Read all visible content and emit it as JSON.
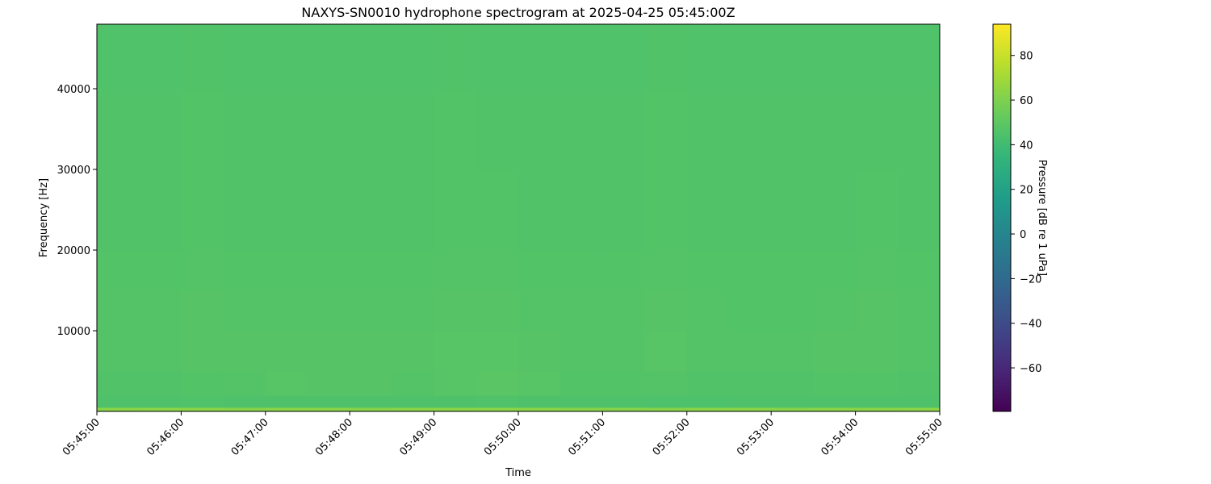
{
  "chart_data": {
    "type": "heatmap",
    "title": "NAXYS-SN0010 hydrophone spectrogram at 2025-04-25 05:45:00Z",
    "xlabel": "Time",
    "ylabel": "Frequency [Hz]",
    "colorbar_label": "Pressure [dB re 1 uPa]",
    "colormap": "viridis",
    "clim": [
      -79.5,
      94
    ],
    "colorbar_ticks": [
      -60,
      -40,
      -20,
      0,
      20,
      40,
      60,
      80
    ],
    "colorbar_tick_labels": [
      "−60",
      "−40",
      "−20",
      "0",
      "20",
      "40",
      "60",
      "80"
    ],
    "xlim": [
      "05:45:00",
      "05:55:00"
    ],
    "x_tick_labels": [
      "05:45:00",
      "05:46:00",
      "05:47:00",
      "05:48:00",
      "05:49:00",
      "05:50:00",
      "05:51:00",
      "05:52:00",
      "05:53:00",
      "05:54:00",
      "05:55:00"
    ],
    "ylim": [
      0,
      48000
    ],
    "y_ticks": [
      10000,
      20000,
      30000,
      40000
    ],
    "y_tick_labels": [
      "10000",
      "20000",
      "30000",
      "40000"
    ],
    "grid": false,
    "time_bin_seconds": 30,
    "freq_bin_edges": [
      0,
      500,
      2000,
      5000,
      10000,
      15000,
      20000,
      30000,
      40000,
      48000
    ],
    "z": [
      [
        63,
        63.5,
        63,
        62.5,
        63,
        63,
        62.5,
        63,
        63,
        63.5,
        63,
        62.5,
        62,
        62.5,
        63,
        63,
        62.5,
        63,
        63,
        63.5
      ],
      [
        45,
        45,
        45.5,
        45,
        45,
        45,
        45,
        45,
        45,
        45.5,
        45,
        45,
        45,
        44.5,
        44.5,
        45,
        45,
        45,
        45,
        45
      ],
      [
        46,
        46,
        46.5,
        47,
        48,
        47.5,
        47.5,
        47,
        48,
        48.5,
        48,
        46.5,
        46.5,
        47,
        46,
        46,
        46,
        46.5,
        46.5,
        46
      ],
      [
        47,
        47,
        47.5,
        47.5,
        47.5,
        47.5,
        47.5,
        47.5,
        48,
        48,
        47.5,
        47,
        47,
        48,
        47,
        47,
        47,
        47.5,
        47.5,
        47
      ],
      [
        47,
        47,
        47.5,
        47,
        47,
        47,
        47,
        47,
        47.5,
        47.5,
        47,
        47,
        47,
        47.5,
        47,
        46.5,
        46.5,
        47,
        47.5,
        47
      ],
      [
        46.5,
        46.5,
        47,
        46.5,
        46.5,
        46.5,
        46.5,
        46.5,
        47,
        47,
        46.5,
        46.5,
        46.5,
        47,
        46.5,
        46.5,
        46.5,
        46.5,
        47,
        46.5
      ],
      [
        46,
        46,
        46.5,
        46,
        46,
        46,
        46,
        46,
        46.5,
        46.5,
        46,
        46,
        46,
        46.5,
        46,
        46,
        46,
        46,
        46.5,
        46
      ],
      [
        46,
        46,
        46.5,
        46,
        46,
        46,
        46,
        46,
        46.5,
        46,
        46,
        46,
        46,
        46.5,
        46,
        46,
        46,
        46,
        46,
        46
      ],
      [
        45.5,
        45.5,
        46,
        45.5,
        45.5,
        45.5,
        45.5,
        45.5,
        46,
        45.5,
        45.5,
        45.5,
        45.5,
        46,
        45.5,
        45.5,
        45.5,
        45.5,
        45.5,
        45.5
      ]
    ]
  }
}
